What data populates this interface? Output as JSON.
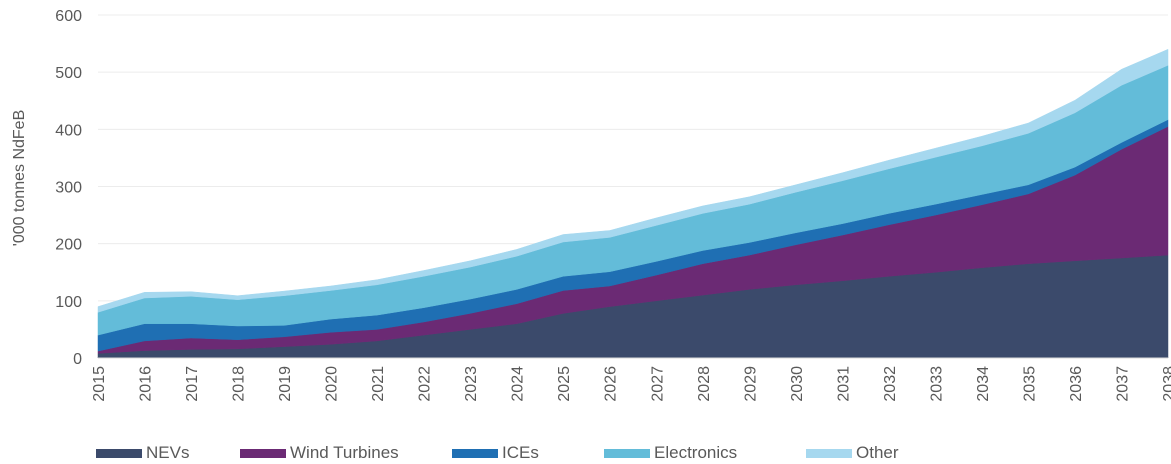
{
  "chart_data": {
    "type": "area",
    "stacked": true,
    "title": "",
    "xlabel": "",
    "ylabel": "'000 tonnes NdFeB",
    "ylim": [
      0,
      600
    ],
    "yticks": [
      0,
      100,
      200,
      300,
      400,
      500,
      600
    ],
    "grid": true,
    "legend_position": "bottom",
    "categories": [
      "2015",
      "2016",
      "2017",
      "2018",
      "2019",
      "2020",
      "2021",
      "2022",
      "2023",
      "2024",
      "2025",
      "2026",
      "2027",
      "2028",
      "2029",
      "2030",
      "2031",
      "2032",
      "2033",
      "2034",
      "2035",
      "2036",
      "2037",
      "2038"
    ],
    "series": [
      {
        "name": "NEVs",
        "color": "#3b4a6b",
        "values": [
          8,
          13,
          15,
          16,
          20,
          24,
          30,
          40,
          50,
          60,
          78,
          90,
          100,
          110,
          120,
          128,
          135,
          143,
          150,
          158,
          165,
          170,
          175,
          180
        ]
      },
      {
        "name": "Wind Turbines",
        "color": "#6b2a74",
        "values": [
          4,
          17,
          20,
          16,
          17,
          21,
          20,
          23,
          28,
          35,
          40,
          36,
          45,
          55,
          60,
          70,
          80,
          90,
          100,
          110,
          122,
          150,
          190,
          225
        ]
      },
      {
        "name": "ICEs",
        "color": "#1f6fb3",
        "values": [
          28,
          30,
          25,
          24,
          20,
          23,
          25,
          25,
          25,
          25,
          25,
          25,
          24,
          23,
          22,
          21,
          20,
          20,
          19,
          18,
          16,
          14,
          12,
          12
        ]
      },
      {
        "name": "Electronics",
        "color": "#63bcd9",
        "values": [
          40,
          45,
          48,
          46,
          52,
          50,
          53,
          55,
          56,
          58,
          60,
          60,
          63,
          65,
          67,
          71,
          75,
          78,
          82,
          85,
          90,
          95,
          100,
          95
        ]
      },
      {
        "name": "Other",
        "color": "#a6d8ef",
        "values": [
          10,
          10,
          8,
          7,
          8,
          8,
          9,
          10,
          11,
          12,
          13,
          12,
          13,
          13,
          13,
          13,
          14,
          15,
          16,
          17,
          18,
          22,
          28,
          28
        ]
      }
    ]
  }
}
